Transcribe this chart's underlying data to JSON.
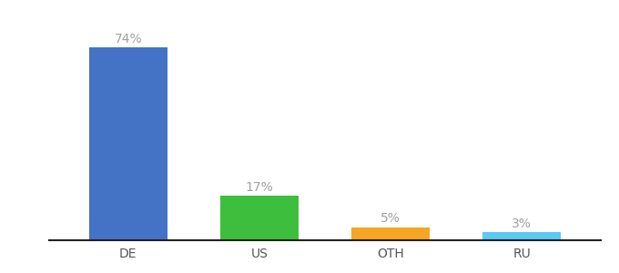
{
  "categories": [
    "DE",
    "US",
    "OTH",
    "RU"
  ],
  "values": [
    74,
    17,
    5,
    3
  ],
  "bar_colors": [
    "#4472c4",
    "#3dbf3d",
    "#f5a623",
    "#5bc8f5"
  ],
  "labels": [
    "74%",
    "17%",
    "5%",
    "3%"
  ],
  "ylim": [
    0,
    85
  ],
  "bar_width": 0.6,
  "label_fontsize": 10,
  "tick_fontsize": 10,
  "background_color": "#ffffff",
  "label_color": "#a0a0a0",
  "x_positions": [
    0,
    1,
    2,
    3
  ],
  "xlim": [
    -0.6,
    3.6
  ]
}
